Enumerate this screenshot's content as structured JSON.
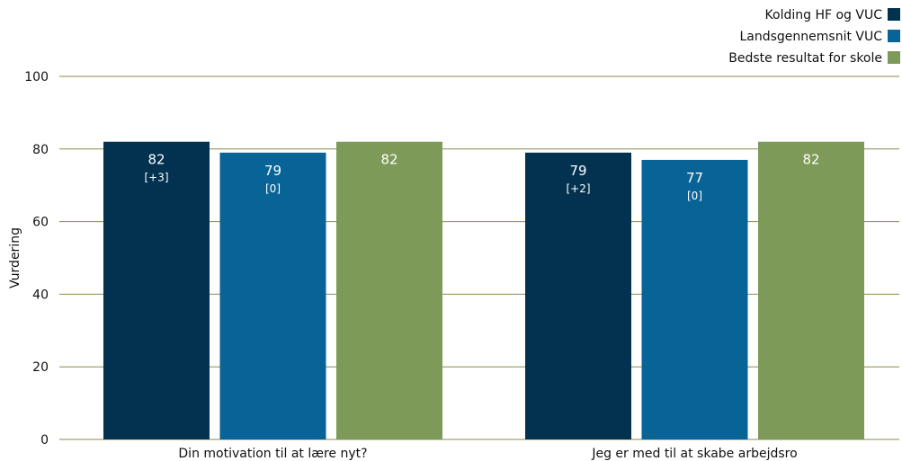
{
  "chart_data": {
    "type": "bar",
    "categories": [
      "Din motivation til at lære nyt?",
      "Jeg er med til at skabe arbejdsro"
    ],
    "ylabel": "Vurdering",
    "ylim": [
      0,
      100
    ],
    "yticks": [
      0,
      20,
      40,
      60,
      80,
      100
    ],
    "grid": true,
    "legend_position": "top-right",
    "series": [
      {
        "name": "Kolding HF og VUC",
        "color": "#02324f",
        "values": [
          82,
          79
        ],
        "labels": [
          "82",
          "79"
        ],
        "deltas": [
          "[+3]",
          "[+2]"
        ]
      },
      {
        "name": "Landsgennemsnit VUC",
        "color": "#086496",
        "values": [
          79,
          77
        ],
        "labels": [
          "79",
          "77"
        ],
        "deltas": [
          "[0]",
          "[0]"
        ]
      },
      {
        "name": "Bedste resultat for skole",
        "color": "#7d9a58",
        "values": [
          82,
          82
        ],
        "labels": [
          "82",
          "82"
        ],
        "deltas": [
          "",
          ""
        ]
      }
    ],
    "gridline_color": "#8c8a4f"
  }
}
